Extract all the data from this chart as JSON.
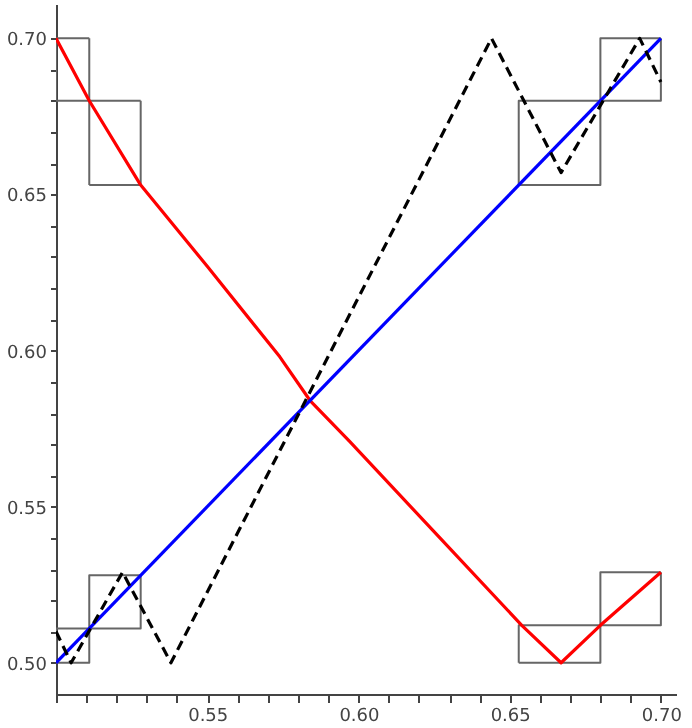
{
  "chart_data": {
    "type": "line",
    "xlim": [
      0.5,
      0.705
    ],
    "ylim": [
      0.49,
      0.711
    ],
    "xticks": [
      {
        "value": 0.5,
        "label": null
      },
      {
        "value": 0.51,
        "label": null
      },
      {
        "value": 0.52,
        "label": null
      },
      {
        "value": 0.53,
        "label": null
      },
      {
        "value": 0.54,
        "label": null
      },
      {
        "value": 0.55,
        "label": "0.55"
      },
      {
        "value": 0.56,
        "label": null
      },
      {
        "value": 0.57,
        "label": null
      },
      {
        "value": 0.58,
        "label": null
      },
      {
        "value": 0.59,
        "label": null
      },
      {
        "value": 0.6,
        "label": "0.60"
      },
      {
        "value": 0.61,
        "label": null
      },
      {
        "value": 0.62,
        "label": null
      },
      {
        "value": 0.63,
        "label": null
      },
      {
        "value": 0.64,
        "label": null
      },
      {
        "value": 0.65,
        "label": "0.65"
      },
      {
        "value": 0.66,
        "label": null
      },
      {
        "value": 0.67,
        "label": null
      },
      {
        "value": 0.68,
        "label": null
      },
      {
        "value": 0.69,
        "label": null
      },
      {
        "value": 0.7,
        "label": "0.70"
      }
    ],
    "yticks": [
      {
        "value": 0.5,
        "label": "0.50"
      },
      {
        "value": 0.51,
        "label": null
      },
      {
        "value": 0.52,
        "label": null
      },
      {
        "value": 0.53,
        "label": null
      },
      {
        "value": 0.54,
        "label": null
      },
      {
        "value": 0.55,
        "label": "0.55"
      },
      {
        "value": 0.56,
        "label": null
      },
      {
        "value": 0.57,
        "label": null
      },
      {
        "value": 0.58,
        "label": null
      },
      {
        "value": 0.59,
        "label": null
      },
      {
        "value": 0.6,
        "label": "0.60"
      },
      {
        "value": 0.61,
        "label": null
      },
      {
        "value": 0.62,
        "label": null
      },
      {
        "value": 0.63,
        "label": null
      },
      {
        "value": 0.64,
        "label": null
      },
      {
        "value": 0.65,
        "label": "0.65"
      },
      {
        "value": 0.66,
        "label": null
      },
      {
        "value": 0.67,
        "label": null
      },
      {
        "value": 0.68,
        "label": null
      },
      {
        "value": 0.69,
        "label": null
      },
      {
        "value": 0.7,
        "label": "0.70"
      }
    ],
    "grid": false,
    "marker": "none",
    "series": [
      {
        "color": "#666666",
        "line_style": "solid",
        "x": [
          0.5,
          0.511,
          0.511,
          null,
          0.5,
          0.5,
          0.511,
          null,
          0.511,
          0.528,
          0.528,
          null,
          0.511,
          0.511,
          0.528
        ],
        "values": [
          0.68,
          0.68,
          0.7,
          null,
          0.68,
          0.7,
          0.7,
          null,
          0.653,
          0.653,
          0.68,
          null,
          0.653,
          0.68,
          0.68
        ]
      },
      {
        "color": "#666666",
        "line_style": "solid",
        "x": [
          0.653,
          0.68,
          0.68,
          null,
          0.653,
          0.653,
          0.68,
          null,
          0.68,
          0.7,
          0.7,
          null,
          0.68,
          0.68,
          0.7
        ],
        "values": [
          0.653,
          0.653,
          0.68,
          null,
          0.653,
          0.68,
          0.68,
          null,
          0.68,
          0.68,
          0.7,
          null,
          0.68,
          0.7,
          0.7
        ]
      },
      {
        "color": "#666666",
        "line_style": "solid",
        "x": [
          0.5,
          0.511,
          0.511,
          null,
          0.5,
          0.5,
          0.511,
          null,
          0.511,
          0.528,
          0.528,
          null,
          0.511,
          0.511,
          0.528
        ],
        "values": [
          0.5,
          0.5,
          0.511,
          null,
          0.5,
          0.511,
          0.511,
          null,
          0.511,
          0.511,
          0.528,
          null,
          0.511,
          0.528,
          0.528
        ]
      },
      {
        "color": "#666666",
        "line_style": "solid",
        "x": [
          0.653,
          0.68,
          0.68,
          null,
          0.653,
          0.653,
          0.68,
          null,
          0.68,
          0.7,
          0.7,
          null,
          0.68,
          0.68,
          0.7
        ],
        "values": [
          0.5,
          0.5,
          0.512,
          null,
          0.5,
          0.512,
          0.512,
          null,
          0.512,
          0.512,
          0.529,
          null,
          0.512,
          0.529,
          0.529
        ]
      },
      {
        "color": "#ff0000",
        "line_style": "solid",
        "x": [
          0.5,
          0.511,
          0.528,
          0.55,
          0.574,
          0.584,
          0.597,
          0.625,
          0.654,
          0.667,
          0.68,
          0.7
        ],
        "values": [
          0.7,
          0.68,
          0.653,
          0.627,
          0.598,
          0.584,
          0.571,
          0.542,
          0.512,
          0.5,
          0.512,
          0.529
        ]
      },
      {
        "color": "#0000ff",
        "line_style": "solid",
        "x": [
          0.5,
          0.7
        ],
        "values": [
          0.5,
          0.7
        ]
      },
      {
        "color": "#000000",
        "line_style": "dashed",
        "x": [
          0.5,
          0.505,
          0.522,
          0.538,
          0.644,
          0.667,
          0.693,
          0.7
        ],
        "values": [
          0.51,
          0.5,
          0.529,
          0.5,
          0.7,
          0.657,
          0.7,
          0.686
        ]
      }
    ]
  }
}
